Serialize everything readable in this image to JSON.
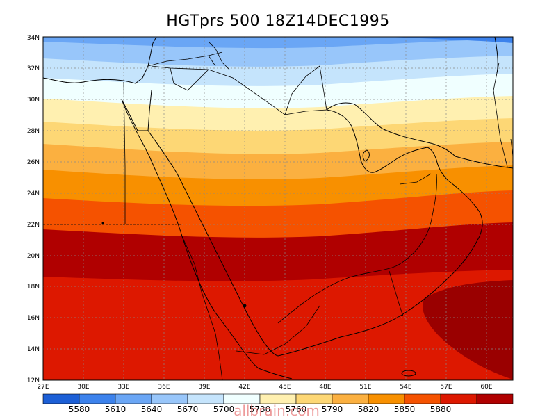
{
  "title": "HGTprs 500 18Z14DEC1995",
  "watermark": "allbrain.com",
  "map": {
    "x_ticks": [
      "27E",
      "30E",
      "33E",
      "36E",
      "39E",
      "42E",
      "45E",
      "48E",
      "51E",
      "54E",
      "57E",
      "60E"
    ],
    "y_ticks": [
      "12N",
      "14N",
      "16N",
      "18N",
      "20N",
      "22N",
      "24N",
      "26N",
      "28N",
      "30N",
      "32N",
      "34N"
    ],
    "y_tick_labels_shown": [
      "12N",
      "14N",
      "16N",
      "18N",
      "20N",
      "22N",
      "24N",
      "26N",
      "28N",
      "30N",
      "32N",
      "34N"
    ]
  },
  "colorbar": {
    "levels": [
      "5580",
      "5610",
      "5640",
      "5670",
      "5700",
      "5730",
      "5760",
      "5790",
      "5820",
      "5850",
      "5880"
    ],
    "colors": [
      "#1c5fd6",
      "#3c82ec",
      "#6aa6f5",
      "#98c6fa",
      "#c5e4fc",
      "#f0ffff",
      "#fff0b0",
      "#fdd775",
      "#fbb040",
      "#f89000",
      "#f55200",
      "#dd1800",
      "#b00000"
    ]
  }
}
